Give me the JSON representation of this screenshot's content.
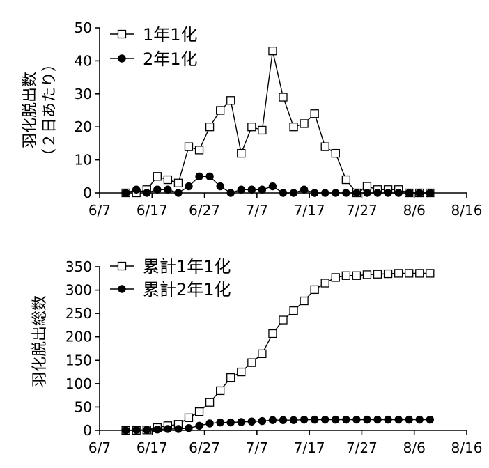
{
  "chart_data": [
    {
      "type": "line",
      "ylabel_lines": [
        "羽化脱出数",
        "（２日あたり）"
      ],
      "xlabel": "",
      "xlim": [
        "6/7",
        "8/16"
      ],
      "ylim": [
        0,
        50
      ],
      "yticks": [
        0,
        10,
        20,
        30,
        40,
        50
      ],
      "xticks": [
        "6/7",
        "6/17",
        "6/27",
        "7/7",
        "7/17",
        "7/27",
        "8/6",
        "8/16"
      ],
      "legend_position": "top-left",
      "grid": false,
      "x": [
        "6/12",
        "6/14",
        "6/16",
        "6/18",
        "6/20",
        "6/22",
        "6/24",
        "6/26",
        "6/28",
        "6/30",
        "7/2",
        "7/4",
        "7/6",
        "7/8",
        "7/10",
        "7/12",
        "7/14",
        "7/16",
        "7/18",
        "7/20",
        "7/22",
        "7/24",
        "7/26",
        "7/28",
        "7/30",
        "8/1",
        "8/3",
        "8/5",
        "8/7",
        "8/9"
      ],
      "series": [
        {
          "name": "1年1化",
          "marker": "open-square",
          "values": [
            0,
            0,
            1,
            5,
            4,
            3,
            14,
            13,
            20,
            25,
            28,
            12,
            20,
            19,
            43,
            29,
            20,
            21,
            24,
            14,
            12,
            4,
            0,
            2,
            1,
            1,
            1,
            0,
            0,
            0
          ]
        },
        {
          "name": "2年1化",
          "marker": "filled-circle",
          "values": [
            0,
            1,
            0,
            1,
            1,
            0,
            2,
            5,
            5,
            2,
            0,
            1,
            1,
            1,
            2,
            0,
            0,
            1,
            0,
            0,
            0,
            0,
            0,
            0,
            0,
            0,
            0,
            0,
            0,
            0
          ]
        }
      ]
    },
    {
      "type": "line",
      "ylabel_lines": [
        "羽化脱出総数"
      ],
      "xlabel": "",
      "xlim": [
        "6/7",
        "8/16"
      ],
      "ylim": [
        0,
        350
      ],
      "yticks": [
        0,
        50,
        100,
        150,
        200,
        250,
        300,
        350
      ],
      "xticks": [
        "6/7",
        "6/17",
        "6/27",
        "7/7",
        "7/17",
        "7/27",
        "8/6",
        "8/16"
      ],
      "legend_position": "top-left",
      "grid": false,
      "x": [
        "6/12",
        "6/14",
        "6/16",
        "6/18",
        "6/20",
        "6/22",
        "6/24",
        "6/26",
        "6/28",
        "6/30",
        "7/2",
        "7/4",
        "7/6",
        "7/8",
        "7/10",
        "7/12",
        "7/14",
        "7/16",
        "7/18",
        "7/20",
        "7/22",
        "7/24",
        "7/26",
        "7/28",
        "7/30",
        "8/1",
        "8/3",
        "8/5",
        "8/7",
        "8/9"
      ],
      "series": [
        {
          "name": "累計1年1化",
          "marker": "open-square",
          "values": [
            0,
            0,
            1,
            6,
            10,
            13,
            27,
            40,
            60,
            85,
            113,
            125,
            145,
            164,
            207,
            236,
            256,
            277,
            301,
            315,
            327,
            331,
            331,
            333,
            334,
            335,
            336,
            336,
            336,
            336
          ]
        },
        {
          "name": "累計2年1化",
          "marker": "filled-circle",
          "values": [
            0,
            1,
            1,
            2,
            3,
            3,
            5,
            10,
            15,
            17,
            17,
            18,
            19,
            20,
            22,
            22,
            22,
            23,
            23,
            23,
            23,
            23,
            23,
            23,
            23,
            23,
            23,
            23,
            23,
            23
          ]
        }
      ]
    }
  ]
}
